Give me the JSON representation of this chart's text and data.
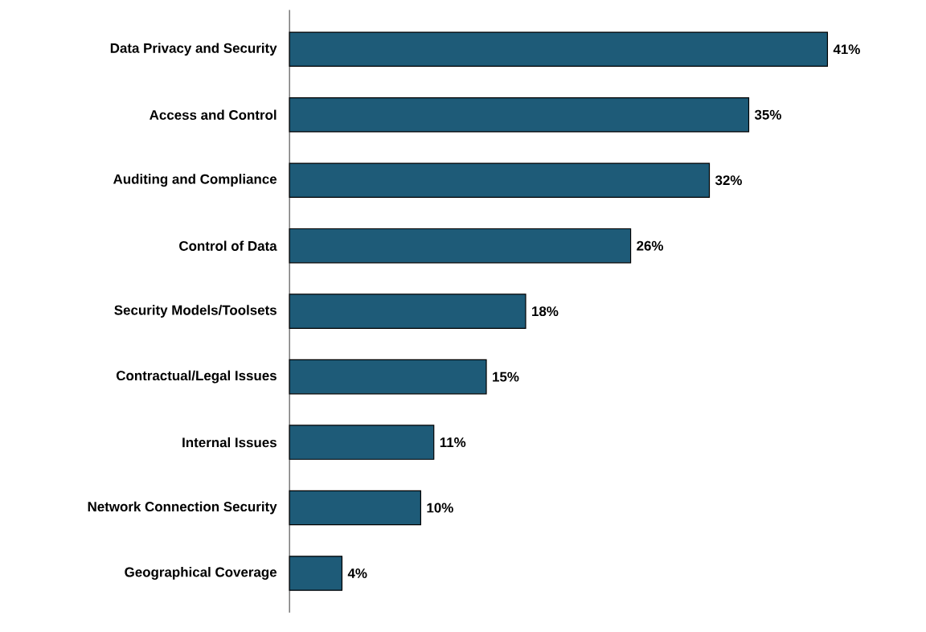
{
  "chart_data": {
    "type": "bar",
    "orientation": "horizontal",
    "categories": [
      "Data Privacy and Security",
      "Access and Control",
      "Auditing and Compliance",
      "Control of Data",
      "Security Models/Toolsets",
      "Contractual/Legal Issues",
      "Internal Issues",
      "Network Connection Security",
      "Geographical Coverage"
    ],
    "values": [
      41,
      35,
      32,
      26,
      18,
      15,
      11,
      10,
      4
    ],
    "value_labels": [
      "41%",
      "35%",
      "32%",
      "26%",
      "18%",
      "15%",
      "11%",
      "10%",
      "4%"
    ],
    "color": "#1e5b78",
    "tick_labels": "y"
  }
}
